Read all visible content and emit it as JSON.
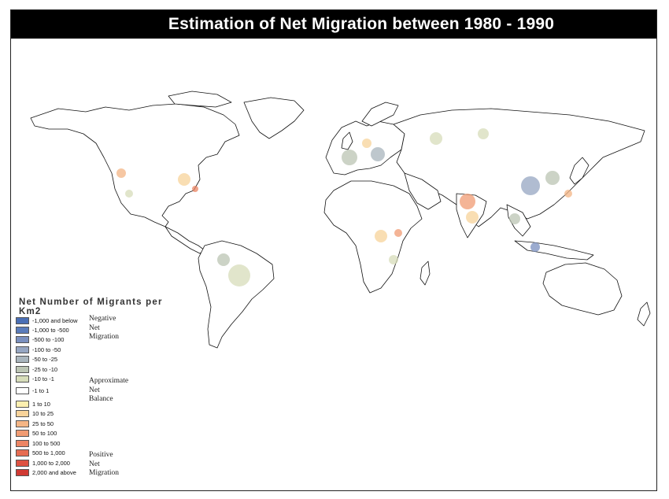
{
  "title": "Estimation of Net Migration between 1980 - 1990",
  "legend": {
    "title": "Net Number of Migrants per Km2",
    "items": [
      {
        "label": "-1,000 and below",
        "color": "#4a6fb5"
      },
      {
        "label": "-1,000 to -500",
        "color": "#5a7cbb"
      },
      {
        "label": "-500 to -100",
        "color": "#7a90bf"
      },
      {
        "label": "-100 to -50",
        "color": "#96a6c2"
      },
      {
        "label": "-50 to -25",
        "color": "#a9b5bd"
      },
      {
        "label": "-25 to -10",
        "color": "#bcc5b4"
      },
      {
        "label": "-10 to -1",
        "color": "#d7ddba"
      },
      {
        "label": "-1 to 1",
        "color": "#ffffff"
      },
      {
        "label": "1 to 10",
        "color": "#fcefb0"
      },
      {
        "label": "10 to 25",
        "color": "#f8d39a"
      },
      {
        "label": "25 to 50",
        "color": "#f4b585"
      },
      {
        "label": "50 to 100",
        "color": "#f19c73"
      },
      {
        "label": "100 to 500",
        "color": "#ec8564"
      },
      {
        "label": "500 to 1,000",
        "color": "#e66c52"
      },
      {
        "label": "1,000 to 2,000",
        "color": "#de5242"
      },
      {
        "label": "2,000 and above",
        "color": "#d03a33"
      }
    ],
    "groups": [
      {
        "lines": [
          "Negative",
          "Net",
          "Migration"
        ]
      },
      {
        "lines": [
          "Approximate",
          "Net",
          "Balance"
        ]
      },
      {
        "lines": [
          "Positive",
          "Net",
          "Migration"
        ]
      }
    ]
  }
}
